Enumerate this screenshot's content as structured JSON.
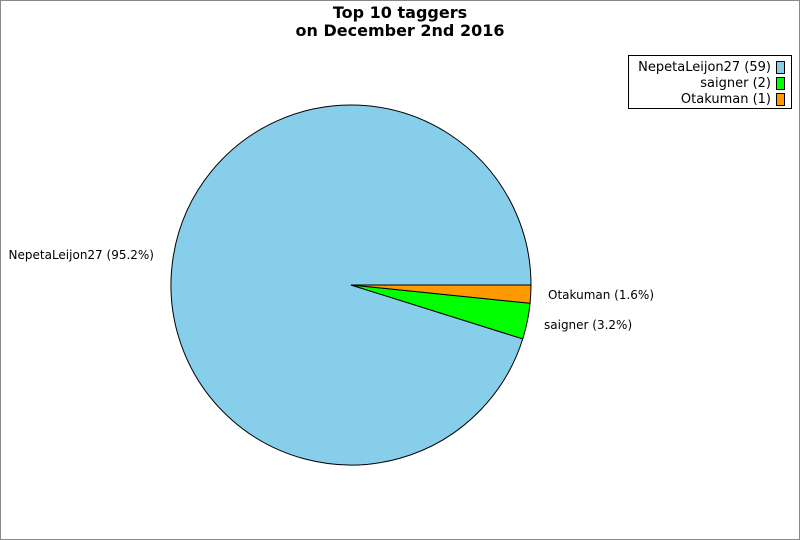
{
  "chart_data": {
    "type": "pie",
    "title_line1": "Top 10 taggers",
    "title_line2": "on December 2nd 2016",
    "slices": [
      {
        "name": "NepetaLeijon27",
        "count": 59,
        "percent": 95.2,
        "color": "#87CEEB",
        "legend_text": "NepetaLeijon27 (59)",
        "label_text": "NepetaLeijon27 (95.2%)"
      },
      {
        "name": "saigner",
        "count": 2,
        "percent": 3.2,
        "color": "#00FF00",
        "legend_text": "saigner (2)",
        "label_text": "saigner (3.2%)"
      },
      {
        "name": "Otakuman",
        "count": 1,
        "percent": 1.6,
        "color": "#FF9900",
        "legend_text": "Otakuman (1)",
        "label_text": "Otakuman (1.6%)"
      }
    ],
    "legend_position": "top-right"
  }
}
